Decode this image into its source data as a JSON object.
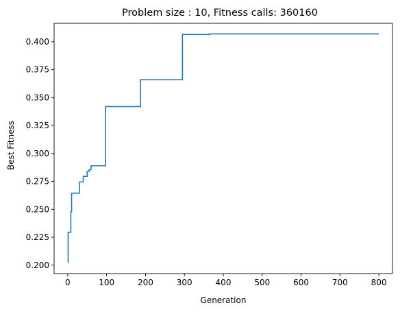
{
  "chart_data": {
    "type": "line",
    "title": "Problem size : 10, Fitness calls: 360160",
    "xlabel": "Generation",
    "ylabel": "Best Fitness",
    "xlim": [
      -35,
      835
    ],
    "ylim": [
      0.1925,
      0.4165
    ],
    "grid": false,
    "legend": "none",
    "x_ticks": [
      0,
      100,
      200,
      300,
      400,
      500,
      600,
      700,
      800
    ],
    "x_tick_labels": [
      "0",
      "100",
      "200",
      "300",
      "400",
      "500",
      "600",
      "700",
      "800"
    ],
    "y_ticks": [
      0.2,
      0.225,
      0.25,
      0.275,
      0.3,
      0.325,
      0.35,
      0.375,
      0.4
    ],
    "y_tick_labels": [
      "0.200",
      "0.225",
      "0.250",
      "0.275",
      "0.300",
      "0.325",
      "0.350",
      "0.375",
      "0.400"
    ],
    "series": [
      {
        "color": "#1f77b4",
        "x": [
          0,
          1,
          1,
          8,
          8,
          10,
          10,
          30,
          30,
          40,
          40,
          50,
          50,
          55,
          55,
          60,
          60,
          97,
          97,
          187,
          187,
          295,
          295,
          365,
          365,
          800
        ],
        "y": [
          0.2025,
          0.2025,
          0.2295,
          0.2295,
          0.248,
          0.248,
          0.2645,
          0.2645,
          0.2745,
          0.2745,
          0.2795,
          0.2795,
          0.284,
          0.284,
          0.2855,
          0.2855,
          0.289,
          0.289,
          0.342,
          0.342,
          0.366,
          0.366,
          0.4065,
          0.4065,
          0.407,
          0.407
        ]
      }
    ]
  }
}
